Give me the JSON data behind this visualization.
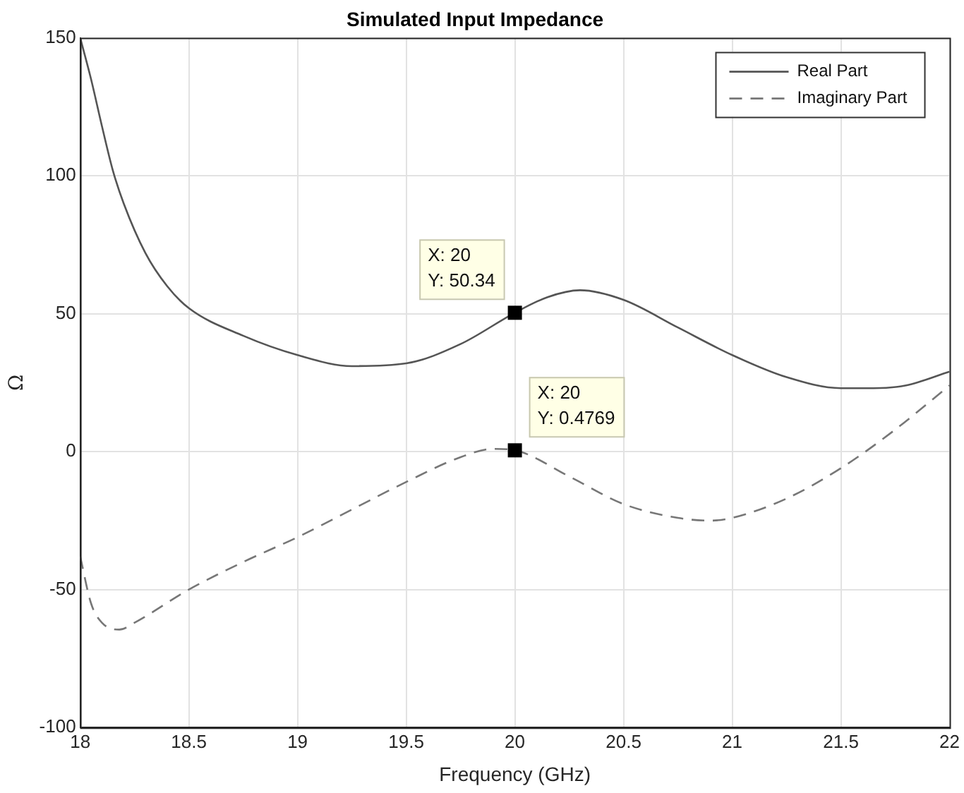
{
  "chart_data": {
    "type": "line",
    "title": "Simulated Input Impedance",
    "xlabel": "Frequency (GHz)",
    "ylabel": "Ω",
    "xlim": [
      18,
      22
    ],
    "xticks": [
      18,
      18.5,
      19,
      19.5,
      20,
      20.5,
      21,
      21.5,
      22
    ],
    "ylim": [
      -100,
      150
    ],
    "yticks": [
      -100,
      -50,
      0,
      50,
      100,
      150
    ],
    "grid": true,
    "legend": "top right",
    "series": [
      {
        "name": "Real Part",
        "color": "#555555",
        "line_style": "solid",
        "x": [
          18,
          18.05,
          18.1,
          18.15,
          18.2,
          18.3,
          18.4,
          18.5,
          18.75,
          19,
          19.25,
          19.5,
          19.75,
          20,
          20.15,
          20.3,
          20.5,
          20.75,
          21,
          21.25,
          21.5,
          21.65,
          21.8,
          22
        ],
        "values": [
          150,
          135,
          118,
          102,
          90,
          72,
          60,
          52,
          42,
          35,
          31,
          32,
          39,
          50.34,
          56,
          58.5,
          55,
          45,
          35,
          27,
          23,
          23,
          24,
          29
        ]
      },
      {
        "name": "Imaginary Part",
        "color": "#777777",
        "line_style": "dashed",
        "x": [
          18,
          18.05,
          18.1,
          18.18,
          18.25,
          18.5,
          18.75,
          19,
          19.25,
          19.5,
          19.75,
          19.9,
          20,
          20.25,
          20.5,
          20.75,
          20.9,
          21,
          21.25,
          21.5,
          21.75,
          22
        ],
        "values": [
          -38,
          -55,
          -62,
          -64.5,
          -62,
          -50,
          -40,
          -31,
          -21,
          -11,
          -2,
          1,
          0.4769,
          -9,
          -19,
          -24,
          -25,
          -24,
          -17,
          -6,
          8,
          24
        ]
      }
    ],
    "annotations": [
      {
        "text": "X: 20\nY: 50.34",
        "x": 20,
        "y": 50.34
      },
      {
        "text": "X: 20\nY: 0.4769",
        "x": 20,
        "y": 0.4769
      }
    ]
  }
}
